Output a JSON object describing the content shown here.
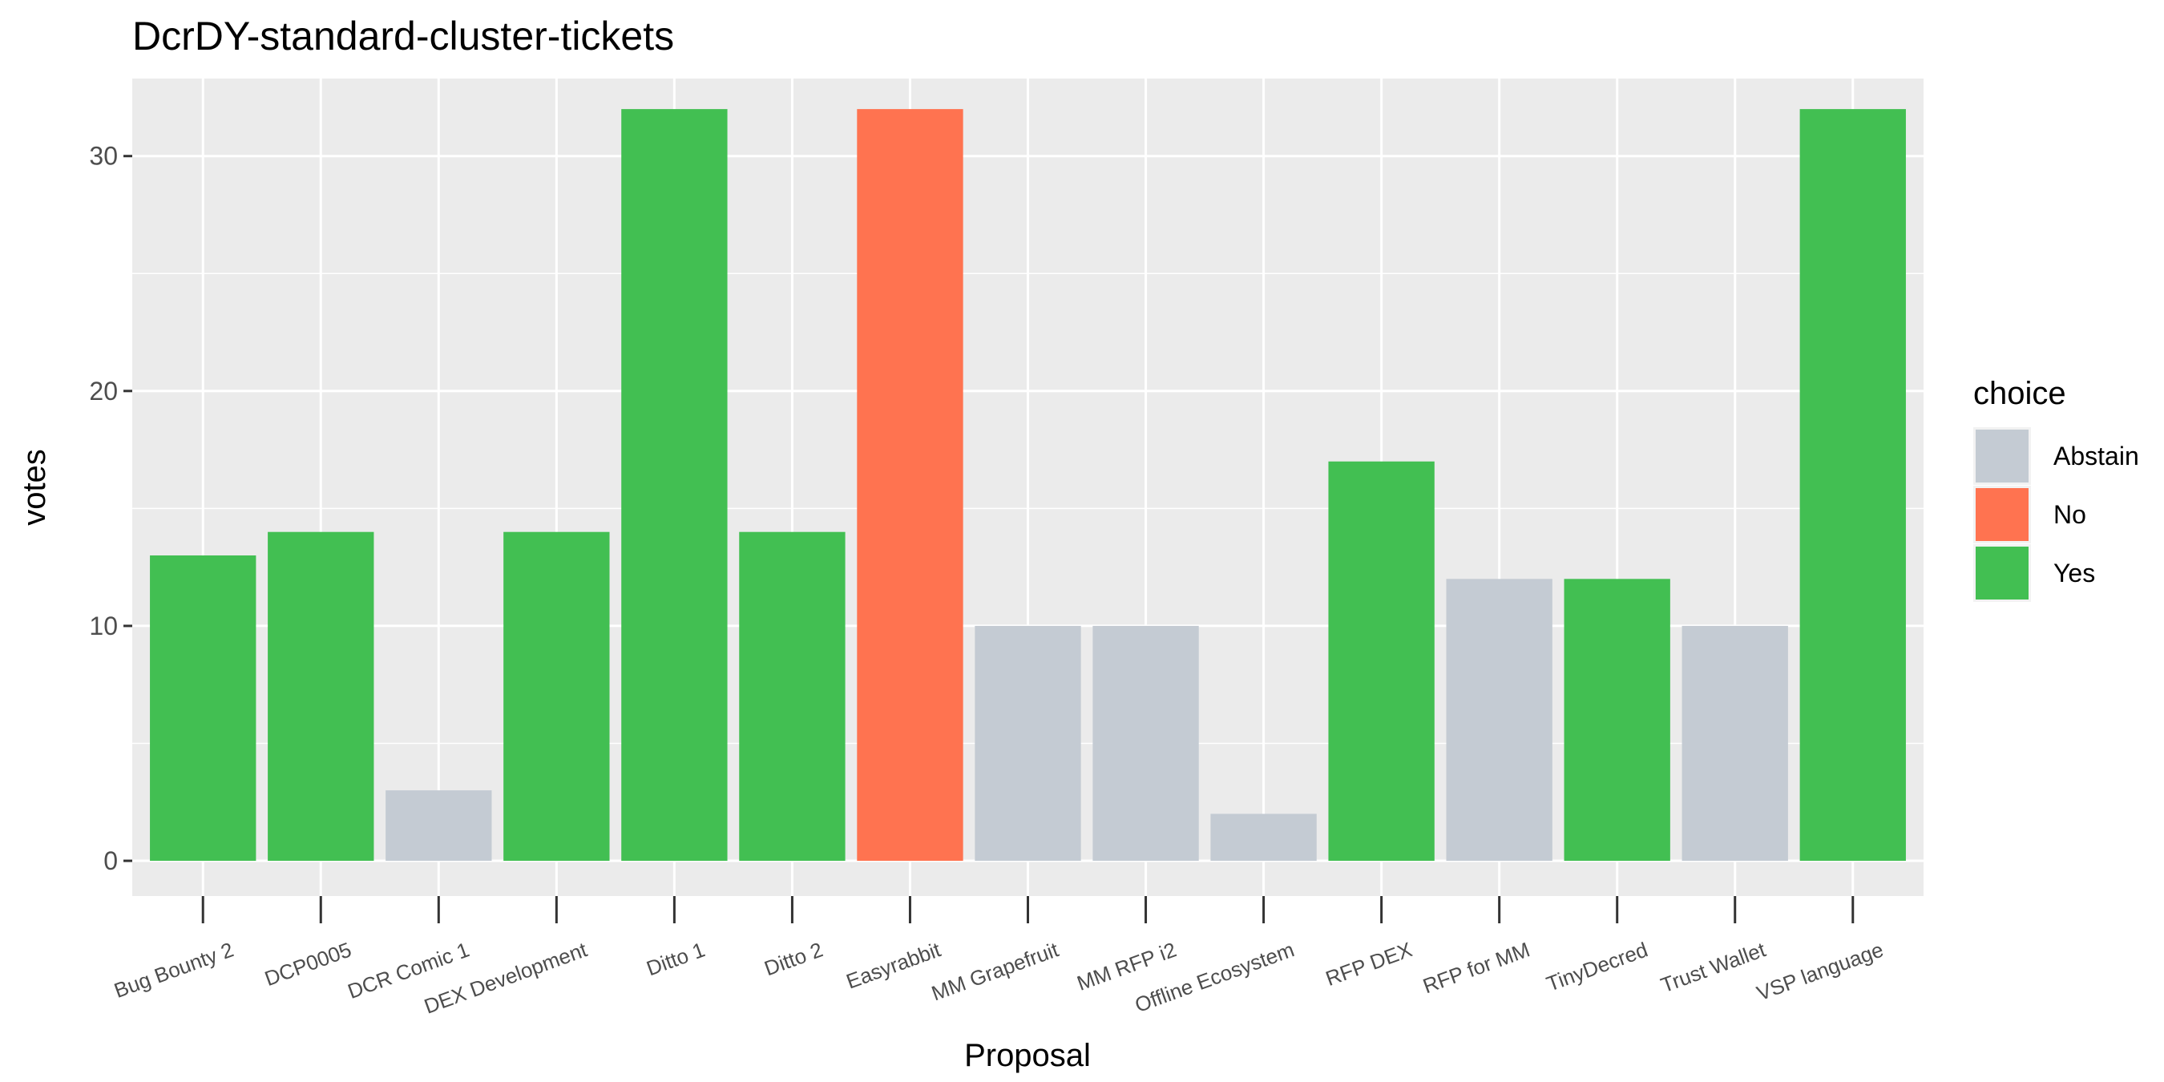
{
  "chart_data": {
    "type": "bar",
    "title": "DcrDY-standard-cluster-tickets",
    "xlabel": "Proposal",
    "ylabel": "votes",
    "ylim": [
      -1.5,
      33.3
    ],
    "yticks": [
      0,
      10,
      20,
      30
    ],
    "grid": true,
    "legend": {
      "title": "choice",
      "placement": "right",
      "entries": [
        {
          "name": "Abstain",
          "color": "#c4cbd3"
        },
        {
          "name": "No",
          "color": "#ff7350"
        },
        {
          "name": "Yes",
          "color": "#42bf52"
        }
      ]
    },
    "categories": [
      "Bug Bounty 2",
      "DCP0005",
      "DCR Comic 1",
      "DEX Development",
      "Ditto 1",
      "Ditto 2",
      "Easyrabbit",
      "MM Grapefruit",
      "MM RFP i2",
      "Offline Ecosystem",
      "RFP DEX",
      "RFP for MM",
      "TinyDecred",
      "Trust Wallet",
      "VSP language"
    ],
    "values": [
      13,
      14,
      3,
      14,
      32,
      14,
      32,
      10,
      10,
      2,
      17,
      12,
      12,
      10,
      32
    ],
    "choices": [
      "Yes",
      "Yes",
      "Abstain",
      "Yes",
      "Yes",
      "Yes",
      "No",
      "Abstain",
      "Abstain",
      "Abstain",
      "Yes",
      "Abstain",
      "Yes",
      "Abstain",
      "Yes"
    ],
    "panel_color": "#ebebeb",
    "grid_color": "#ffffff"
  }
}
